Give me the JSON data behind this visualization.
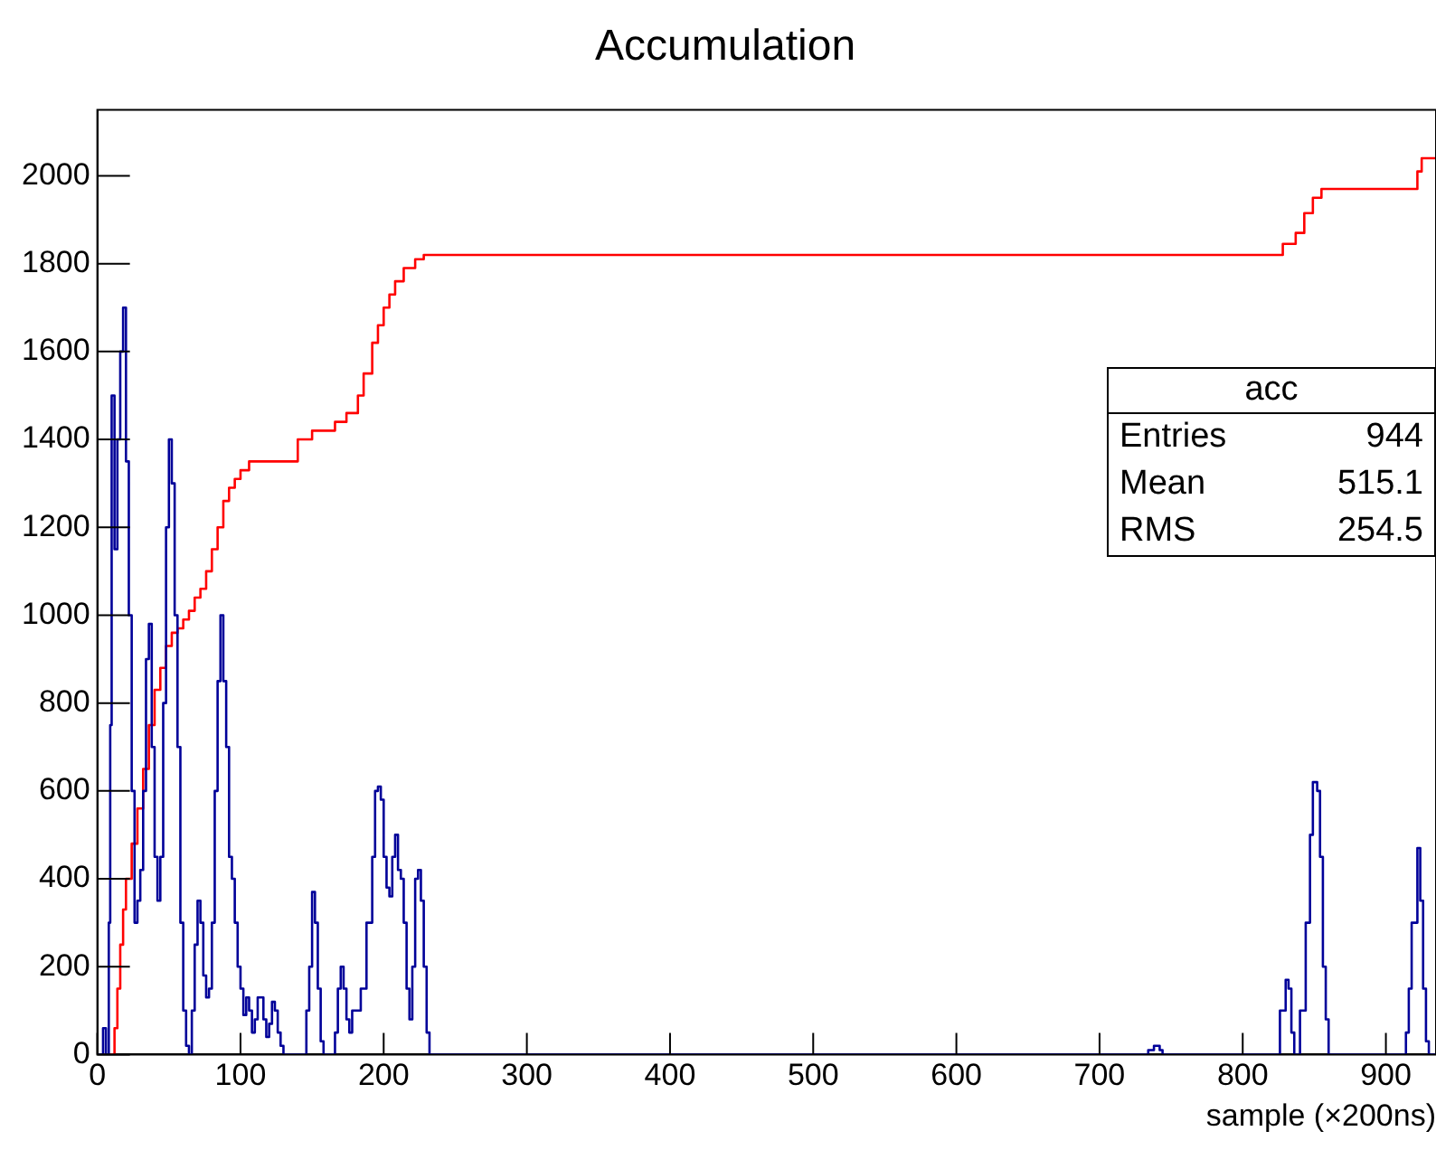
{
  "chart_data": {
    "type": "step",
    "title": "Accumulation",
    "xlabel": "sample (×200ns)",
    "xlim": [
      0,
      935
    ],
    "xticks": [
      0,
      100,
      200,
      300,
      400,
      500,
      600,
      700,
      800,
      900
    ],
    "ylim": [
      0,
      2150
    ],
    "yticks": [
      0,
      200,
      400,
      600,
      800,
      1000,
      1200,
      1400,
      1600,
      1800,
      2000
    ],
    "grid": false,
    "legend": false,
    "annotations": [
      "acc",
      "Entries 944",
      "Mean 515.1",
      "RMS 254.5"
    ],
    "series": [
      {
        "color": "#000099",
        "x": [
          0,
          4,
          6,
          8,
          9,
          10,
          12,
          14,
          16,
          18,
          20,
          22,
          24,
          26,
          28,
          30,
          32,
          34,
          36,
          38,
          40,
          42,
          44,
          46,
          48,
          50,
          52,
          54,
          56,
          58,
          60,
          62,
          64,
          66,
          68,
          70,
          72,
          74,
          76,
          78,
          80,
          82,
          84,
          86,
          88,
          90,
          92,
          94,
          96,
          98,
          100,
          102,
          104,
          106,
          108,
          110,
          112,
          114,
          116,
          118,
          120,
          122,
          124,
          126,
          128,
          130,
          146,
          148,
          150,
          152,
          154,
          156,
          158,
          166,
          168,
          170,
          172,
          174,
          176,
          178,
          180,
          184,
          188,
          192,
          194,
          196,
          198,
          200,
          202,
          204,
          206,
          208,
          210,
          212,
          214,
          216,
          218,
          220,
          222,
          224,
          226,
          228,
          230,
          232,
          236,
          734,
          738,
          742,
          744,
          826,
          830,
          832,
          834,
          836,
          840,
          844,
          847,
          849,
          852,
          854,
          856,
          858,
          860,
          914,
          916,
          918,
          922,
          924,
          926,
          928,
          930,
          935
        ],
        "values": [
          0,
          60,
          0,
          300,
          750,
          1500,
          1150,
          1400,
          1600,
          1700,
          1350,
          1000,
          600,
          300,
          350,
          420,
          600,
          900,
          980,
          700,
          450,
          350,
          450,
          800,
          1200,
          1400,
          1300,
          1000,
          700,
          300,
          100,
          20,
          0,
          100,
          250,
          350,
          300,
          180,
          130,
          150,
          300,
          600,
          850,
          1000,
          850,
          700,
          450,
          400,
          300,
          200,
          150,
          90,
          130,
          100,
          50,
          80,
          130,
          130,
          80,
          40,
          70,
          120,
          100,
          50,
          20,
          0,
          100,
          200,
          370,
          300,
          150,
          30,
          0,
          50,
          150,
          200,
          150,
          80,
          50,
          100,
          100,
          150,
          300,
          450,
          600,
          610,
          580,
          450,
          380,
          360,
          450,
          500,
          420,
          400,
          300,
          150,
          80,
          200,
          400,
          420,
          350,
          200,
          50,
          0,
          0,
          10,
          20,
          10,
          0,
          100,
          170,
          150,
          50,
          0,
          100,
          300,
          500,
          620,
          600,
          450,
          200,
          80,
          0,
          50,
          150,
          300,
          470,
          350,
          150,
          30,
          0,
          0
        ]
      },
      {
        "color": "#ff0000",
        "x": [
          0,
          10,
          12,
          14,
          16,
          18,
          20,
          24,
          28,
          32,
          36,
          40,
          44,
          48,
          52,
          56,
          60,
          64,
          68,
          72,
          76,
          80,
          84,
          88,
          92,
          96,
          100,
          106,
          130,
          140,
          150,
          166,
          174,
          182,
          186,
          192,
          196,
          200,
          204,
          208,
          214,
          222,
          228,
          822,
          828,
          837,
          843,
          849,
          855,
          922,
          925,
          935
        ],
        "values": [
          0,
          0,
          60,
          150,
          250,
          330,
          400,
          480,
          560,
          650,
          750,
          830,
          880,
          930,
          960,
          970,
          990,
          1010,
          1040,
          1060,
          1100,
          1150,
          1200,
          1260,
          1290,
          1310,
          1330,
          1350,
          1350,
          1400,
          1420,
          1440,
          1460,
          1500,
          1550,
          1620,
          1660,
          1700,
          1730,
          1760,
          1790,
          1810,
          1820,
          1820,
          1845,
          1870,
          1915,
          1950,
          1970,
          2010,
          2040,
          2040
        ]
      }
    ]
  }
}
